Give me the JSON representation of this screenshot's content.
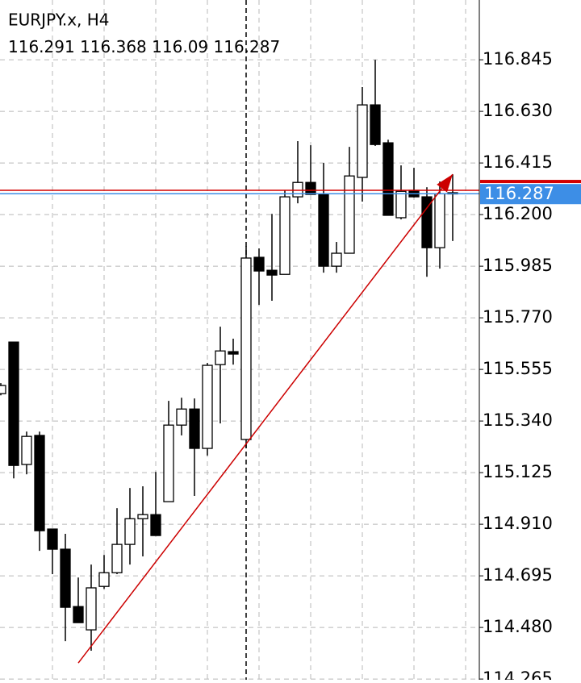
{
  "chart_data": {
    "type": "candlestick",
    "title": "EURJPY.x, H4",
    "open": [
      115.454,
      115.669,
      115.159,
      115.28,
      114.89,
      114.806,
      114.567,
      114.47,
      114.651,
      114.708,
      114.826,
      114.933,
      114.95,
      115.004,
      115.323,
      115.39,
      115.226,
      115.575,
      115.629,
      115.263,
      116.022,
      115.968,
      115.951,
      116.274,
      116.334,
      116.284,
      115.985,
      116.039,
      116.355,
      116.657,
      116.499,
      116.187,
      116.301,
      116.274,
      116.062,
      116.291
    ],
    "high": [
      115.498,
      115.669,
      115.296,
      115.296,
      114.89,
      114.87,
      114.688,
      114.742,
      114.782,
      114.977,
      115.061,
      115.068,
      115.128,
      115.424,
      115.437,
      115.434,
      115.582,
      115.733,
      115.683,
      116.069,
      116.059,
      116.203,
      116.301,
      116.506,
      116.489,
      116.415,
      116.086,
      116.482,
      116.731,
      116.845,
      116.512,
      116.405,
      116.395,
      116.314,
      116.338,
      116.368
    ],
    "low": [
      115.447,
      115.101,
      115.118,
      114.799,
      114.702,
      114.423,
      114.5,
      114.383,
      114.641,
      114.702,
      114.742,
      114.776,
      114.863,
      115.004,
      115.28,
      115.028,
      115.196,
      115.33,
      115.575,
      115.226,
      115.824,
      115.841,
      115.951,
      116.247,
      116.284,
      115.958,
      115.958,
      116.039,
      116.254,
      116.486,
      116.197,
      116.18,
      116.271,
      115.941,
      115.975,
      116.09
    ],
    "close": [
      115.488,
      115.155,
      115.276,
      114.883,
      114.806,
      114.564,
      114.5,
      114.645,
      114.708,
      114.826,
      114.933,
      114.95,
      114.863,
      115.323,
      115.39,
      115.226,
      115.572,
      115.632,
      115.619,
      116.019,
      115.965,
      115.948,
      116.274,
      116.334,
      116.284,
      115.985,
      116.039,
      116.361,
      116.657,
      116.492,
      116.197,
      116.297,
      116.274,
      116.062,
      116.287,
      116.287
    ],
    "ask": 116.301,
    "ylim": [
      114.262,
      117.094
    ],
    "yticks": [
      116.845,
      {
        "value": 116.63,
        "label": "116.630"
      },
      116.415,
      {
        "value": 116.2,
        "label": "116.200"
      },
      115.985,
      {
        "value": 115.77,
        "label": "115.770"
      },
      115.555,
      {
        "value": 115.34,
        "label": "115.340"
      },
      115.125,
      {
        "value": 114.91,
        "label": "114.910"
      },
      114.695,
      {
        "value": 114.48,
        "label": "114.480"
      },
      114.265
    ],
    "grid": true,
    "crosshair_index": 19,
    "trendline": {
      "start_index": 6,
      "start_price": 114.332,
      "end_index": 35,
      "end_price": 116.368,
      "color": "#cc0000"
    },
    "bull_color": "#ffffff",
    "bear_color": "#000000",
    "bid_color": "#3d8ee6",
    "ask_color": "#d40000"
  }
}
